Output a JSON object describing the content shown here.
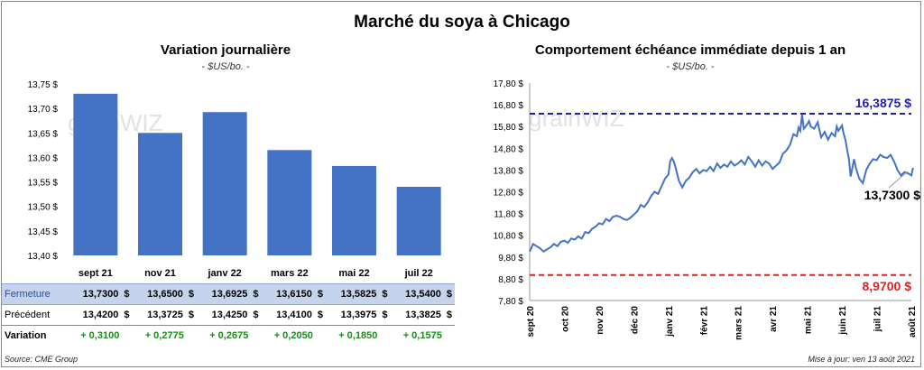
{
  "main_title": "Marché du soya à Chicago",
  "left": {
    "title": "Variation journalière",
    "unit": "- $US/bo. -",
    "watermark": "grainWIZ"
  },
  "right": {
    "title": "Comportement échéance immédiate depuis 1 an",
    "unit": "- $US/bo. -",
    "watermark": "grainWIZ"
  },
  "table": {
    "row_labels": {
      "close": "Fermeture",
      "prev": "Précédent",
      "var": "Variation"
    },
    "currency": "$",
    "close": [
      "13,7300",
      "13,6500",
      "13,6925",
      "13,6150",
      "13,5825",
      "13,5400"
    ],
    "prev": [
      "13,4200",
      "13,3725",
      "13,4250",
      "13,4100",
      "13,3975",
      "13,3825"
    ],
    "var": [
      "+ 0,3100",
      "+ 0,2775",
      "+ 0,2675",
      "+ 0,2050",
      "+ 0,1850",
      "+ 0,1575"
    ]
  },
  "footer": {
    "source": "Source: CME Group",
    "updated": "Mise à jour: ven 13 août 2021"
  },
  "chart_data": [
    {
      "type": "bar",
      "categories": [
        "sept 21",
        "nov 21",
        "janv 22",
        "mars 22",
        "mai 22",
        "juil 22"
      ],
      "values": [
        13.73,
        13.65,
        13.6925,
        13.615,
        13.5825,
        13.54
      ],
      "ylim": [
        13.4,
        13.75
      ],
      "yticks": [
        "13,40 $",
        "13,45 $",
        "13,50 $",
        "13,55 $",
        "13,60 $",
        "13,65 $",
        "13,70 $",
        "13,75 $"
      ],
      "grid": false,
      "bar_color": "#4472c4"
    },
    {
      "type": "line",
      "ylim": [
        7.8,
        17.8
      ],
      "yticks": [
        "7,80 $",
        "8,80 $",
        "9,80 $",
        "10,80 $",
        "11,80 $",
        "12,80 $",
        "13,80 $",
        "14,80 $",
        "15,80 $",
        "16,80 $",
        "17,80 $"
      ],
      "xticks": [
        "sept 20",
        "oct 20",
        "nov 20",
        "déc 20",
        "janv 21",
        "févr 21",
        "mars 21",
        "avr 21",
        "mai 21",
        "juin 21",
        "juil 21",
        "août 21"
      ],
      "line_color": "#4472c4",
      "points": [
        [
          0,
          10.05
        ],
        [
          0.1,
          10.4
        ],
        [
          0.2,
          10.3
        ],
        [
          0.3,
          10.2
        ],
        [
          0.4,
          10.05
        ],
        [
          0.5,
          10.15
        ],
        [
          0.6,
          10.25
        ],
        [
          0.7,
          10.4
        ],
        [
          0.8,
          10.3
        ],
        [
          0.9,
          10.5
        ],
        [
          1.0,
          10.55
        ],
        [
          1.1,
          10.45
        ],
        [
          1.2,
          10.65
        ],
        [
          1.3,
          10.6
        ],
        [
          1.4,
          10.75
        ],
        [
          1.5,
          10.65
        ],
        [
          1.6,
          10.95
        ],
        [
          1.7,
          10.9
        ],
        [
          1.8,
          11.1
        ],
        [
          1.9,
          11.2
        ],
        [
          2.0,
          11.35
        ],
        [
          2.1,
          11.3
        ],
        [
          2.2,
          11.55
        ],
        [
          2.3,
          11.45
        ],
        [
          2.4,
          11.65
        ],
        [
          2.5,
          11.7
        ],
        [
          2.6,
          11.65
        ],
        [
          2.7,
          11.55
        ],
        [
          2.8,
          11.5
        ],
        [
          2.9,
          11.6
        ],
        [
          3.0,
          11.75
        ],
        [
          3.1,
          11.9
        ],
        [
          3.2,
          12.2
        ],
        [
          3.3,
          12.1
        ],
        [
          3.4,
          12.3
        ],
        [
          3.5,
          12.6
        ],
        [
          3.6,
          12.8
        ],
        [
          3.7,
          12.7
        ],
        [
          3.8,
          13.05
        ],
        [
          3.9,
          13.4
        ],
        [
          4.0,
          13.6
        ],
        [
          4.05,
          14.2
        ],
        [
          4.1,
          14.35
        ],
        [
          4.15,
          14.2
        ],
        [
          4.2,
          13.95
        ],
        [
          4.3,
          13.3
        ],
        [
          4.4,
          13.0
        ],
        [
          4.5,
          13.3
        ],
        [
          4.6,
          13.45
        ],
        [
          4.7,
          13.7
        ],
        [
          4.8,
          13.85
        ],
        [
          4.9,
          13.65
        ],
        [
          5.0,
          13.8
        ],
        [
          5.1,
          13.75
        ],
        [
          5.2,
          13.95
        ],
        [
          5.3,
          13.75
        ],
        [
          5.4,
          14.1
        ],
        [
          5.5,
          13.9
        ],
        [
          5.6,
          14.05
        ],
        [
          5.7,
          13.95
        ],
        [
          5.8,
          14.2
        ],
        [
          5.9,
          14.0
        ],
        [
          6.0,
          14.1
        ],
        [
          6.1,
          14.25
        ],
        [
          6.2,
          14.05
        ],
        [
          6.3,
          14.4
        ],
        [
          6.4,
          14.2
        ],
        [
          6.5,
          13.95
        ],
        [
          6.6,
          14.25
        ],
        [
          6.7,
          14.0
        ],
        [
          6.8,
          14.2
        ],
        [
          6.9,
          14.1
        ],
        [
          7.0,
          13.85
        ],
        [
          7.1,
          14.0
        ],
        [
          7.2,
          14.15
        ],
        [
          7.3,
          14.55
        ],
        [
          7.4,
          14.7
        ],
        [
          7.5,
          14.95
        ],
        [
          7.6,
          15.45
        ],
        [
          7.7,
          15.35
        ],
        [
          7.75,
          15.75
        ],
        [
          7.8,
          15.6
        ],
        [
          7.85,
          16.35
        ],
        [
          7.9,
          15.7
        ],
        [
          8.0,
          15.9
        ],
        [
          8.05,
          16.05
        ],
        [
          8.1,
          15.8
        ],
        [
          8.2,
          15.7
        ],
        [
          8.3,
          16.0
        ],
        [
          8.4,
          15.3
        ],
        [
          8.5,
          15.55
        ],
        [
          8.6,
          15.2
        ],
        [
          8.7,
          15.5
        ],
        [
          8.8,
          15.35
        ],
        [
          8.85,
          15.8
        ],
        [
          8.9,
          15.6
        ],
        [
          9.0,
          15.85
        ],
        [
          9.05,
          15.45
        ],
        [
          9.1,
          15.2
        ],
        [
          9.15,
          14.7
        ],
        [
          9.2,
          14.3
        ],
        [
          9.25,
          13.5
        ],
        [
          9.3,
          13.9
        ],
        [
          9.35,
          14.3
        ],
        [
          9.4,
          13.9
        ],
        [
          9.5,
          13.4
        ],
        [
          9.6,
          13.2
        ],
        [
          9.7,
          13.8
        ],
        [
          9.8,
          14.1
        ],
        [
          9.9,
          14.3
        ],
        [
          10.0,
          14.25
        ],
        [
          10.1,
          14.5
        ],
        [
          10.2,
          14.4
        ],
        [
          10.3,
          14.35
        ],
        [
          10.4,
          14.5
        ],
        [
          10.5,
          14.2
        ],
        [
          10.6,
          13.8
        ],
        [
          10.7,
          13.55
        ],
        [
          10.8,
          13.7
        ],
        [
          10.9,
          13.65
        ],
        [
          11.0,
          13.55
        ],
        [
          11.05,
          13.9
        ]
      ],
      "ref_lines": [
        {
          "value": 16.3875,
          "label": "16,3875 $",
          "color": "#1f1fa8"
        },
        {
          "value": 8.97,
          "label": "8,9700 $",
          "color": "#e02020"
        }
      ],
      "last_label": "13,7300 $",
      "grid": false
    }
  ]
}
